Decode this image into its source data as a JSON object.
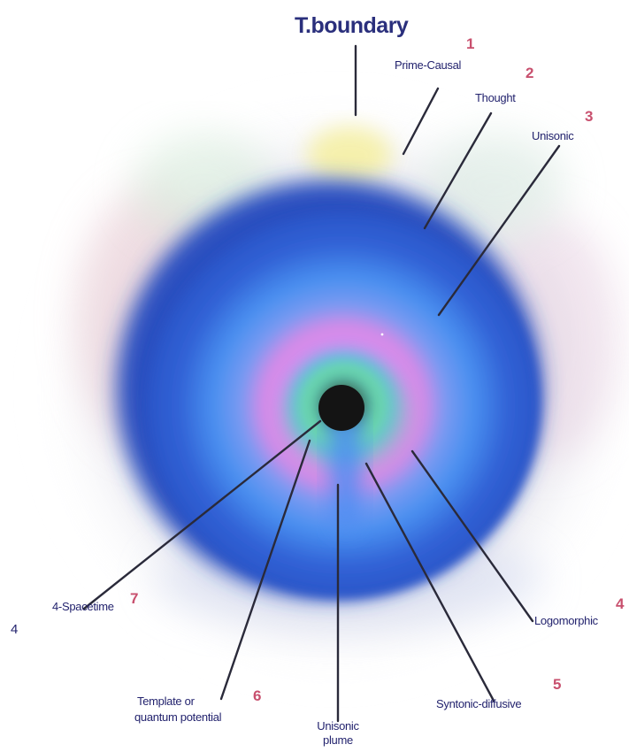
{
  "title": "T.boundary",
  "layers": [
    {
      "number": "1",
      "label": "Prime-Causal"
    },
    {
      "number": "2",
      "label": "Thought"
    },
    {
      "number": "3",
      "label": "Unisonic"
    },
    {
      "number": "4",
      "label": "Logomorphic"
    },
    {
      "number": "5",
      "label": "Syntonic-diffusive"
    },
    {
      "number": "6",
      "label_line1": "Template or",
      "label_line2": "quantum potential"
    },
    {
      "number": "7",
      "label": "4-Spacetime"
    }
  ],
  "plume": {
    "line1": "Unisonic",
    "line2": "plume"
  },
  "stray_mark": "4",
  "colors": {
    "text": "#23236e",
    "numbers": "#c8506e",
    "outer_blue": "#2f5fd2",
    "inner_blue": "#4a8fef",
    "violet": "#d98ce8",
    "green": "#5fd8a8",
    "core": "#1a1a1a"
  }
}
